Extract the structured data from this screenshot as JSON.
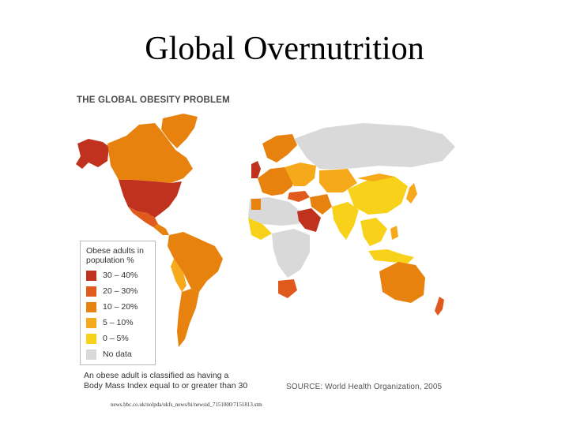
{
  "slide": {
    "title": "Global Overnutrition"
  },
  "figure": {
    "title": "THE GLOBAL OBESITY PROBLEM",
    "legend": {
      "title_line1": "Obese adults in",
      "title_line2": "population %",
      "items": [
        {
          "label": "30 – 40%",
          "color": "#c0321e"
        },
        {
          "label": "20 – 30%",
          "color": "#e05a1e"
        },
        {
          "label": "10 – 20%",
          "color": "#e8820e"
        },
        {
          "label": "5 – 10%",
          "color": "#f6a91a"
        },
        {
          "label": "0 – 5%",
          "color": "#f8d21a"
        },
        {
          "label": "No data",
          "color": "#d9d9d9"
        }
      ]
    },
    "footnote_line1": "An obese adult is classified as having a",
    "footnote_line2": "Body Mass Index equal to or greater than 30",
    "source": "SOURCE: World Health Organization, 2005",
    "url": "news.bbc.co.uk/nolpda/ukfs_news/hi/newsid_7151000/7151813.stm"
  }
}
